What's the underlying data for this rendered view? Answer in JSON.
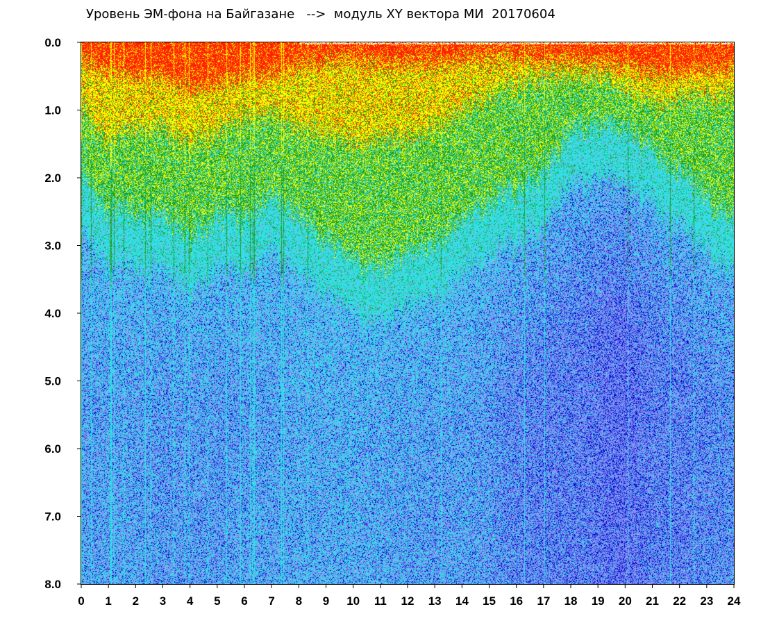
{
  "chart_data": {
    "type": "heatmap",
    "title": "Уровень ЭМ-фона на Байгазане   -->  модуль XY вектора МИ  20170604",
    "xlabel": "",
    "ylabel": "",
    "xlim": [
      0,
      24
    ],
    "ylim": [
      0,
      8
    ],
    "y_inverted": true,
    "x_ticks": [
      "0",
      "1",
      "2",
      "3",
      "4",
      "5",
      "6",
      "7",
      "8",
      "9",
      "10",
      "11",
      "12",
      "13",
      "14",
      "15",
      "16",
      "17",
      "18",
      "19",
      "20",
      "21",
      "22",
      "23",
      "24"
    ],
    "y_ticks": [
      "0.0",
      "1.0",
      "2.0",
      "3.0",
      "4.0",
      "5.0",
      "6.0",
      "7.0",
      "8.0"
    ],
    "color_scale": [
      "#0000cc",
      "#6e7ef0",
      "#9aa6f5",
      "#2fe0e6",
      "#1a9e1a",
      "#ffff00",
      "#ff2000"
    ],
    "grid": false,
    "legend": "none",
    "hourly_band_depths": {
      "hours": [
        0,
        1,
        2,
        3,
        4,
        5,
        6,
        7,
        8,
        9,
        10,
        11,
        12,
        13,
        14,
        15,
        16,
        17,
        18,
        19,
        20,
        21,
        22,
        23,
        24
      ],
      "red_yellow_edge": [
        0.3,
        0.4,
        0.55,
        0.5,
        0.7,
        0.6,
        0.5,
        0.5,
        0.35,
        0.3,
        0.25,
        0.3,
        0.3,
        0.3,
        0.25,
        0.2,
        0.2,
        0.25,
        0.25,
        0.3,
        0.35,
        0.45,
        0.45,
        0.4,
        0.35
      ],
      "yellow_green_edge": [
        1.0,
        1.4,
        1.3,
        1.2,
        1.5,
        1.3,
        1.1,
        1.0,
        1.3,
        1.4,
        1.5,
        1.4,
        1.4,
        1.3,
        1.0,
        0.8,
        0.6,
        0.5,
        0.5,
        0.5,
        0.7,
        0.9,
        0.8,
        0.8,
        0.8
      ],
      "green_cyan_edge": [
        2.0,
        2.4,
        2.6,
        2.5,
        2.9,
        2.5,
        2.6,
        2.2,
        2.6,
        3.0,
        3.2,
        3.3,
        3.1,
        3.0,
        2.6,
        2.4,
        2.1,
        1.9,
        1.3,
        1.2,
        1.3,
        1.6,
        1.9,
        2.3,
        2.6
      ],
      "blue_intensity": [
        0.3,
        0.3,
        0.3,
        0.4,
        0.4,
        0.4,
        0.3,
        0.3,
        0.2,
        0.2,
        0.2,
        0.25,
        0.3,
        0.35,
        0.3,
        0.4,
        0.6,
        0.7,
        0.7,
        0.8,
        0.95,
        0.7,
        0.7,
        0.6,
        0.5
      ]
    }
  }
}
